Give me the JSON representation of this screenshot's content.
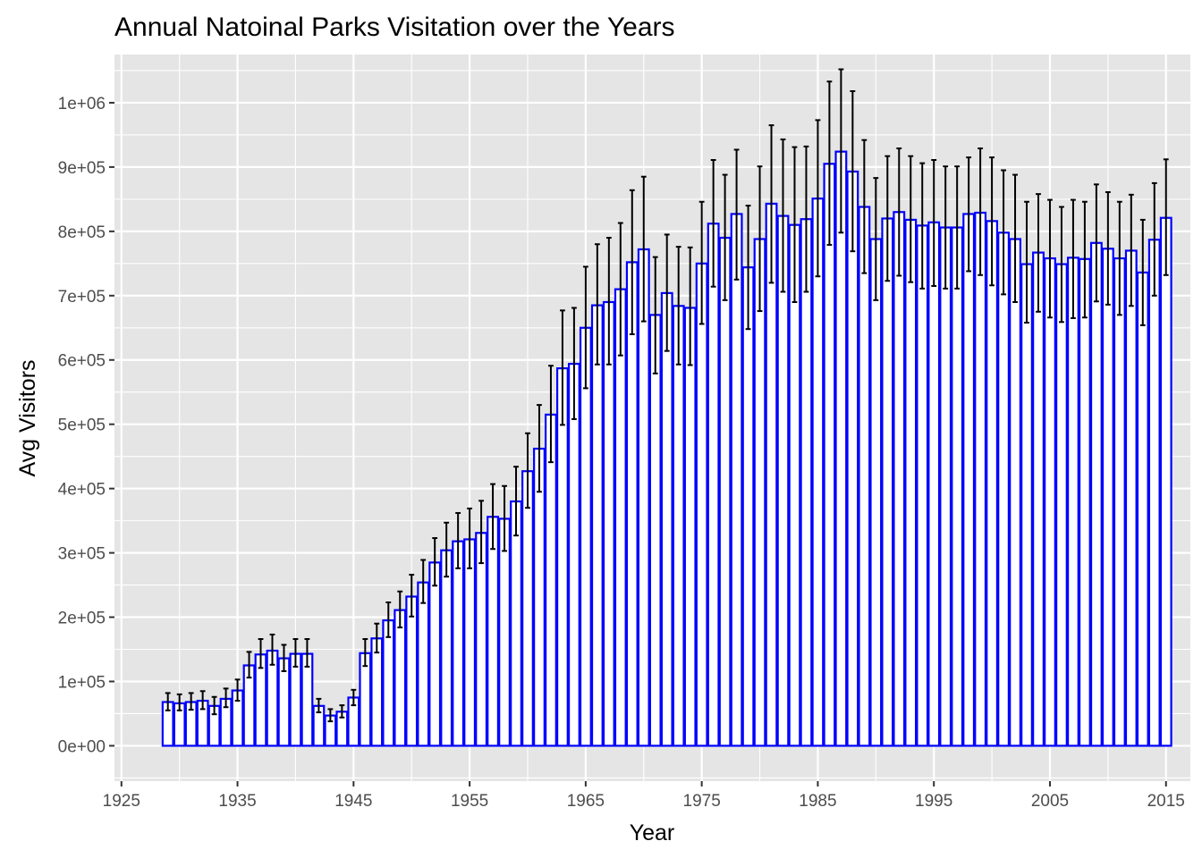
{
  "chart_data": {
    "type": "bar",
    "title": "Annual Natoinal Parks Visitation over the Years",
    "xlabel": "Year",
    "ylabel": "Avg Visitors",
    "xlim": [
      1924.4,
      2017.1
    ],
    "ylim": [
      -55000,
      1075000
    ],
    "x_ticks": [
      1925,
      1935,
      1945,
      1955,
      1965,
      1975,
      1985,
      1995,
      2005,
      2015
    ],
    "x_tick_labels": [
      "1925",
      "1935",
      "1945",
      "1955",
      "1965",
      "1975",
      "1985",
      "1995",
      "2005",
      "2015"
    ],
    "y_ticks": [
      0,
      100000,
      200000,
      300000,
      400000,
      500000,
      600000,
      700000,
      800000,
      900000,
      1000000
    ],
    "y_tick_labels": [
      "0e+00",
      "1e+05",
      "2e+05",
      "3e+05",
      "4e+05",
      "5e+05",
      "6e+05",
      "7e+05",
      "8e+05",
      "9e+05",
      "1e+06"
    ],
    "grid": true,
    "bar_outline_color": "#0000ff",
    "bar_fill_color": "#ffffff",
    "errorbar_color": "#000000",
    "panel_background": "#e5e5e5",
    "grid_color": "#ffffff",
    "x": [
      1929,
      1930,
      1931,
      1932,
      1933,
      1934,
      1935,
      1936,
      1937,
      1938,
      1939,
      1940,
      1941,
      1942,
      1943,
      1944,
      1945,
      1946,
      1947,
      1948,
      1949,
      1950,
      1951,
      1952,
      1953,
      1954,
      1955,
      1956,
      1957,
      1958,
      1959,
      1960,
      1961,
      1962,
      1963,
      1964,
      1965,
      1966,
      1967,
      1968,
      1969,
      1970,
      1971,
      1972,
      1973,
      1974,
      1975,
      1976,
      1977,
      1978,
      1979,
      1980,
      1981,
      1982,
      1983,
      1984,
      1985,
      1986,
      1987,
      1988,
      1989,
      1990,
      1991,
      1992,
      1993,
      1994,
      1995,
      1996,
      1997,
      1998,
      1999,
      2000,
      2001,
      2002,
      2003,
      2004,
      2005,
      2006,
      2007,
      2008,
      2009,
      2010,
      2011,
      2012,
      2013,
      2014,
      2015
    ],
    "values": [
      68000,
      66000,
      68000,
      70000,
      62000,
      73000,
      86000,
      125000,
      142000,
      148000,
      136000,
      143000,
      143000,
      62000,
      47000,
      53000,
      75000,
      144000,
      167000,
      195000,
      211000,
      232000,
      254000,
      285000,
      304000,
      318000,
      321000,
      331000,
      356000,
      353000,
      380000,
      427000,
      462000,
      515000,
      587000,
      594000,
      650000,
      685000,
      690000,
      710000,
      752000,
      772000,
      670000,
      704000,
      684000,
      681000,
      750000,
      812000,
      790000,
      827000,
      744000,
      788000,
      843000,
      824000,
      810000,
      819000,
      851000,
      905000,
      924000,
      893000,
      838000,
      788000,
      820000,
      830000,
      818000,
      809000,
      814000,
      806000,
      806000,
      827000,
      829000,
      816000,
      798000,
      788000,
      749000,
      767000,
      758000,
      749000,
      759000,
      757000,
      782000,
      773000,
      758000,
      770000,
      736000,
      787000,
      821000
    ],
    "error_upper": [
      82000,
      80000,
      82000,
      85000,
      76000,
      89000,
      103000,
      146000,
      166000,
      173000,
      157000,
      166000,
      166000,
      73000,
      57000,
      63000,
      87000,
      166000,
      190000,
      223000,
      240000,
      266000,
      289000,
      323000,
      347000,
      362000,
      369000,
      381000,
      407000,
      404000,
      434000,
      486000,
      530000,
      591000,
      677000,
      681000,
      745000,
      780000,
      790000,
      813000,
      864000,
      885000,
      760000,
      795000,
      776000,
      775000,
      846000,
      911000,
      888000,
      927000,
      840000,
      901000,
      965000,
      943000,
      931000,
      932000,
      973000,
      1033000,
      1052000,
      1018000,
      942000,
      883000,
      917000,
      929000,
      917000,
      906000,
      911000,
      901000,
      901000,
      915000,
      929000,
      915000,
      895000,
      888000,
      846000,
      858000,
      849000,
      838000,
      849000,
      846000,
      873000,
      861000,
      846000,
      857000,
      818000,
      875000,
      912000
    ],
    "error_lower": [
      55000,
      55000,
      56000,
      57000,
      49000,
      60000,
      70000,
      106000,
      121000,
      126000,
      116000,
      123000,
      123000,
      52000,
      38000,
      44000,
      63000,
      124000,
      145000,
      169000,
      184000,
      201000,
      222000,
      249000,
      263000,
      276000,
      276000,
      284000,
      306000,
      303000,
      327000,
      370000,
      395000,
      441000,
      499000,
      508000,
      556000,
      593000,
      593000,
      607000,
      640000,
      660000,
      579000,
      614000,
      593000,
      592000,
      656000,
      714000,
      693000,
      725000,
      648000,
      676000,
      720000,
      706000,
      690000,
      706000,
      730000,
      779000,
      798000,
      769000,
      735000,
      693000,
      723000,
      731000,
      721000,
      711000,
      715000,
      711000,
      711000,
      738000,
      732000,
      716000,
      702000,
      690000,
      658000,
      675000,
      666000,
      659000,
      665000,
      666000,
      691000,
      686000,
      670000,
      684000,
      654000,
      700000,
      732000
    ]
  }
}
